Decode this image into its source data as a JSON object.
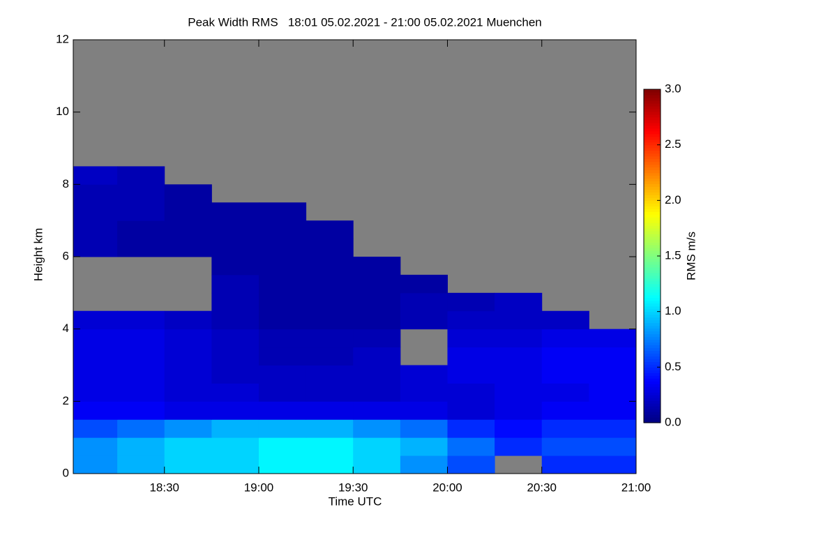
{
  "chart_data": {
    "type": "heatmap",
    "title": "Peak Width RMS   18:01 05.02.2021 - 21:00 05.02.2021 Muenchen",
    "xlabel": "Time UTC",
    "ylabel": "Height km",
    "colorbar_label": "RMS m/s",
    "colormap": "jet",
    "missing_color": "#808080",
    "xlim": [
      18.0167,
      21.0
    ],
    "xticks": [
      {
        "value": 18.5,
        "label": "18:30"
      },
      {
        "value": 19.0,
        "label": "19:00"
      },
      {
        "value": 19.5,
        "label": "19:30"
      },
      {
        "value": 20.0,
        "label": "20:00"
      },
      {
        "value": 20.5,
        "label": "20:30"
      },
      {
        "value": 21.0,
        "label": "21:00"
      }
    ],
    "ylim": [
      0,
      12
    ],
    "yticks": [
      0,
      2,
      4,
      6,
      8,
      10,
      12
    ],
    "clim": [
      0,
      3
    ],
    "cticks": [
      {
        "value": 0,
        "label": "0.0"
      },
      {
        "value": 0.5,
        "label": "0.5"
      },
      {
        "value": 1,
        "label": "1.0"
      },
      {
        "value": 1.5,
        "label": "1.5"
      },
      {
        "value": 2,
        "label": "2.0"
      },
      {
        "value": 2.5,
        "label": "2.5"
      },
      {
        "value": 3,
        "label": "3.0"
      }
    ],
    "xbins": [
      18.0167,
      18.25,
      18.5,
      18.75,
      19.0,
      19.25,
      19.5,
      19.75,
      20.0,
      20.25,
      20.5,
      20.75,
      21.0
    ],
    "ybins": [
      0,
      0.5,
      1,
      1.5,
      2,
      2.5,
      3,
      3.5,
      4,
      4.5,
      5,
      5.5,
      6,
      6.5,
      7,
      7.5,
      8,
      8.5
    ],
    "values": [
      [
        0.8,
        0.9,
        1.0,
        1.0,
        1.1,
        1.1,
        1.0,
        0.8,
        0.6,
        null,
        0.5,
        0.5
      ],
      [
        0.8,
        0.9,
        1.0,
        1.0,
        1.1,
        1.1,
        1.0,
        0.9,
        0.7,
        0.5,
        0.6,
        0.6
      ],
      [
        0.6,
        0.7,
        0.8,
        0.9,
        0.9,
        0.9,
        0.8,
        0.7,
        0.5,
        0.4,
        0.5,
        0.5
      ],
      [
        0.35,
        0.35,
        0.3,
        0.3,
        0.3,
        0.3,
        0.3,
        0.3,
        0.25,
        0.3,
        0.35,
        0.35
      ],
      [
        0.3,
        0.3,
        0.25,
        0.25,
        0.2,
        0.2,
        0.2,
        0.25,
        0.25,
        0.3,
        0.3,
        0.35
      ],
      [
        0.3,
        0.3,
        0.25,
        0.2,
        0.2,
        0.2,
        0.2,
        0.25,
        0.3,
        0.3,
        0.35,
        0.35
      ],
      [
        0.3,
        0.3,
        0.25,
        0.2,
        0.15,
        0.15,
        0.2,
        null,
        0.3,
        0.3,
        0.35,
        0.35
      ],
      [
        0.3,
        0.3,
        0.25,
        0.2,
        0.15,
        0.15,
        0.15,
        null,
        0.25,
        0.25,
        0.3,
        0.3
      ],
      [
        0.25,
        0.25,
        0.2,
        0.15,
        0.1,
        0.1,
        0.1,
        0.15,
        0.2,
        0.2,
        0.2,
        null
      ],
      [
        null,
        null,
        null,
        0.15,
        0.1,
        0.1,
        0.1,
        0.15,
        0.15,
        0.2,
        null,
        null
      ],
      [
        null,
        null,
        null,
        0.15,
        0.1,
        0.1,
        0.1,
        0.1,
        null,
        null,
        null,
        null
      ],
      [
        null,
        null,
        null,
        0.1,
        0.1,
        0.1,
        0.1,
        null,
        null,
        null,
        null,
        null
      ],
      [
        0.15,
        0.1,
        0.1,
        0.1,
        0.1,
        0.1,
        null,
        null,
        null,
        null,
        null,
        null
      ],
      [
        0.15,
        0.1,
        0.1,
        0.1,
        0.1,
        0.1,
        null,
        null,
        null,
        null,
        null,
        null
      ],
      [
        0.15,
        0.15,
        0.1,
        0.1,
        0.1,
        null,
        null,
        null,
        null,
        null,
        null,
        null
      ],
      [
        0.15,
        0.15,
        0.1,
        null,
        null,
        null,
        null,
        null,
        null,
        null,
        null,
        null
      ],
      [
        0.2,
        0.15,
        null,
        null,
        null,
        null,
        null,
        null,
        null,
        null,
        null,
        null
      ]
    ]
  }
}
